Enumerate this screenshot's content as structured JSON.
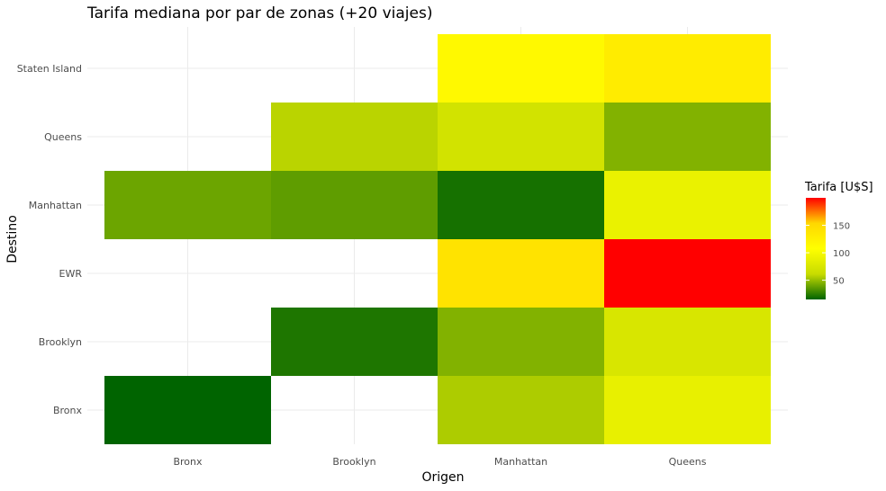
{
  "chart_data": {
    "type": "heatmap",
    "title": "Tarifa mediana por par de zonas (+20 viajes)",
    "xlabel": "Origen",
    "ylabel": "Destino",
    "x_categories": [
      "Bronx",
      "Brooklyn",
      "Manhattan",
      "Queens"
    ],
    "y_categories": [
      "Bronx",
      "Brooklyn",
      "EWR",
      "Manhattan",
      "Queens",
      "Staten Island"
    ],
    "cells": [
      {
        "x": "Bronx",
        "y": "Bronx",
        "value": 15
      },
      {
        "x": "Bronx",
        "y": "Manhattan",
        "value": 40
      },
      {
        "x": "Brooklyn",
        "y": "Brooklyn",
        "value": 22
      },
      {
        "x": "Brooklyn",
        "y": "Manhattan",
        "value": 37
      },
      {
        "x": "Brooklyn",
        "y": "Queens",
        "value": 58
      },
      {
        "x": "Manhattan",
        "y": "Bronx",
        "value": 55
      },
      {
        "x": "Manhattan",
        "y": "Brooklyn",
        "value": 45
      },
      {
        "x": "Manhattan",
        "y": "EWR",
        "value": 140
      },
      {
        "x": "Manhattan",
        "y": "Manhattan",
        "value": 20
      },
      {
        "x": "Manhattan",
        "y": "Queens",
        "value": 70
      },
      {
        "x": "Manhattan",
        "y": "Staten Island",
        "value": 115
      },
      {
        "x": "Queens",
        "y": "Bronx",
        "value": 88
      },
      {
        "x": "Queens",
        "y": "Brooklyn",
        "value": 75
      },
      {
        "x": "Queens",
        "y": "EWR",
        "value": 200
      },
      {
        "x": "Queens",
        "y": "Manhattan",
        "value": 90
      },
      {
        "x": "Queens",
        "y": "Queens",
        "value": 45
      },
      {
        "x": "Queens",
        "y": "Staten Island",
        "value": 130
      }
    ],
    "legend": {
      "title": "Tarifa [U$S]",
      "ticks": [
        50,
        100,
        150
      ],
      "range": [
        15,
        200
      ],
      "colors": [
        "#006400",
        "#c8dc00",
        "#ffff00",
        "#ffd700",
        "#ff0000"
      ],
      "placement": "right"
    },
    "grid": true
  }
}
